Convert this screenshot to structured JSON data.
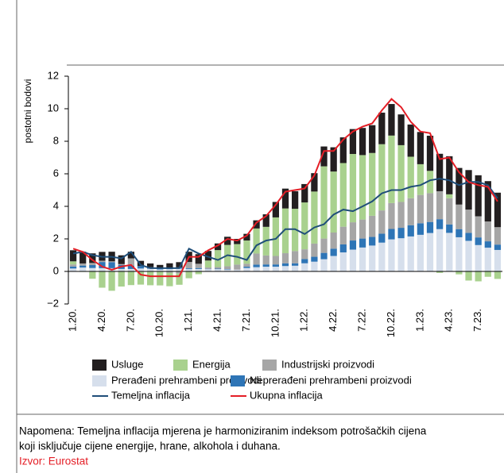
{
  "chart_data": {
    "type": "bar",
    "y_label": "postotni bodovi",
    "categories": [
      "1.20.",
      null,
      null,
      "4.20.",
      null,
      null,
      "7.20.",
      null,
      null,
      "10.20.",
      null,
      null,
      "1.21.",
      null,
      null,
      "4.21.",
      null,
      null,
      "7.21.",
      null,
      null,
      "10.21.",
      null,
      null,
      "1.22.",
      null,
      null,
      "4.22.",
      null,
      null,
      "7.22.",
      null,
      null,
      "10.22.",
      null,
      null,
      "1.23.",
      null,
      null,
      "4.23.",
      null,
      null,
      "7.23.",
      null,
      null
    ],
    "ylim": [
      -2,
      12
    ],
    "yticks": [
      {
        "value": -2,
        "label": "−2"
      },
      0,
      2,
      4,
      6,
      8,
      10,
      12
    ],
    "series": [
      {
        "name": "Usluge",
        "type": "bar",
        "color": "#231f20",
        "values": [
          0.68,
          0.72,
          0.59,
          0.54,
          0.59,
          0.54,
          0.41,
          0.32,
          0.23,
          0.18,
          0.27,
          0.32,
          0.63,
          0.59,
          0.59,
          0.41,
          0.5,
          0.32,
          0.41,
          0.5,
          0.77,
          0.95,
          1.22,
          1.08,
          1.13,
          1.13,
          1.22,
          1.49,
          1.58,
          1.53,
          1.67,
          1.71,
          1.94,
          1.94,
          1.89,
          1.98,
          1.98,
          2.16,
          2.3,
          2.34,
          2.25,
          2.43,
          2.52,
          2.48,
          2.12
        ]
      },
      {
        "name": "Energija",
        "type": "bar",
        "color": "#a9d18e",
        "values": [
          0.19,
          -0.03,
          -0.45,
          -1.0,
          -1.19,
          -0.93,
          -0.84,
          -0.78,
          -0.82,
          -0.83,
          -0.83,
          -0.69,
          -0.42,
          -0.17,
          0.43,
          1.04,
          1.31,
          1.26,
          1.43,
          1.54,
          1.76,
          2.37,
          2.75,
          2.6,
          2.88,
          3.2,
          4.44,
          3.75,
          3.91,
          4.2,
          3.96,
          3.86,
          4.07,
          4.15,
          3.49,
          2.55,
          1.89,
          1.37,
          -0.09,
          0.24,
          -0.18,
          -0.56,
          -0.61,
          -0.33,
          -0.46
        ]
      },
      {
        "name": "Industrijski proizvodi",
        "type": "bar",
        "color": "#a6a6a6",
        "values": [
          0.13,
          0.13,
          0.13,
          0.08,
          0.05,
          0.05,
          0.44,
          -0.03,
          -0.03,
          -0.03,
          -0.08,
          -0.13,
          0.39,
          0.26,
          0.08,
          0.1,
          0.18,
          0.31,
          0.18,
          0.68,
          0.55,
          0.52,
          0.62,
          0.75,
          0.6,
          0.81,
          0.88,
          0.99,
          1.09,
          1.12,
          1.17,
          1.3,
          1.43,
          1.59,
          1.59,
          1.66,
          1.74,
          1.77,
          1.72,
          1.61,
          1.51,
          1.43,
          1.3,
          1.22,
          1.07
        ]
      },
      {
        "name": "Prerađeni prehrambeni proizvodi",
        "type": "bar",
        "color": "#d6dfec",
        "values": [
          0.18,
          0.24,
          0.21,
          0.2,
          0.2,
          0.15,
          0.15,
          0.18,
          0.17,
          0.12,
          0.14,
          0.17,
          0.14,
          0.15,
          0.14,
          0.14,
          0.11,
          0.11,
          0.21,
          0.26,
          0.29,
          0.29,
          0.33,
          0.35,
          0.5,
          0.6,
          0.75,
          0.95,
          1.17,
          1.34,
          1.47,
          1.59,
          1.77,
          1.97,
          2.04,
          2.15,
          2.25,
          2.36,
          2.6,
          2.37,
          2.1,
          1.88,
          1.62,
          1.46,
          1.32
        ]
      },
      {
        "name": "Neprerađeni prehrambeni proizvodi",
        "type": "bar",
        "color": "#2e75b6",
        "values": [
          0.12,
          0.12,
          0.18,
          0.38,
          0.37,
          0.25,
          0.21,
          0.15,
          0.09,
          0.1,
          0.09,
          0.08,
          0.05,
          0.06,
          0.02,
          0.03,
          0.03,
          -0.01,
          0.08,
          0.16,
          0.14,
          0.14,
          0.17,
          0.15,
          0.26,
          0.3,
          0.39,
          0.45,
          0.49,
          0.56,
          0.55,
          0.53,
          0.55,
          0.64,
          0.64,
          0.69,
          0.71,
          0.68,
          0.61,
          0.52,
          0.5,
          0.49,
          0.47,
          0.39,
          0.33
        ]
      },
      {
        "name": "Temeljna inflacija",
        "type": "line",
        "color": "#1f4e79",
        "values": [
          1.1,
          1.2,
          1.0,
          0.9,
          0.9,
          0.8,
          1.2,
          0.4,
          0.2,
          0.2,
          0.2,
          0.2,
          1.4,
          1.1,
          0.9,
          0.7,
          1.0,
          0.9,
          0.7,
          1.6,
          1.9,
          2.0,
          2.6,
          2.6,
          2.3,
          2.7,
          2.9,
          3.5,
          3.8,
          3.7,
          4.0,
          4.3,
          4.8,
          5.0,
          5.0,
          5.2,
          5.3,
          5.6,
          5.7,
          5.6,
          5.3,
          5.5,
          5.5,
          5.3,
          4.5
        ]
      },
      {
        "name": "Ukupna inflacija",
        "type": "line",
        "color": "#e41e26",
        "values": [
          1.4,
          1.2,
          0.7,
          0.3,
          0.1,
          0.3,
          0.4,
          -0.2,
          -0.3,
          -0.3,
          -0.3,
          -0.3,
          0.9,
          0.9,
          1.3,
          1.6,
          2.0,
          1.9,
          2.2,
          3.0,
          3.4,
          4.1,
          4.9,
          5.0,
          5.1,
          5.9,
          7.4,
          7.4,
          8.1,
          8.6,
          8.9,
          9.1,
          9.9,
          10.6,
          10.1,
          9.2,
          8.6,
          8.5,
          6.9,
          7.0,
          6.1,
          5.5,
          5.3,
          5.2,
          4.3
        ]
      }
    ],
    "note": [
      "Napomena: Temeljna inflacija mjerena je harmoniziranim indeksom potrošačkih cijena",
      "koji isključuje cijene energije, hrane, alkohola i duhana."
    ],
    "source": "Izvor: Eurostat"
  }
}
